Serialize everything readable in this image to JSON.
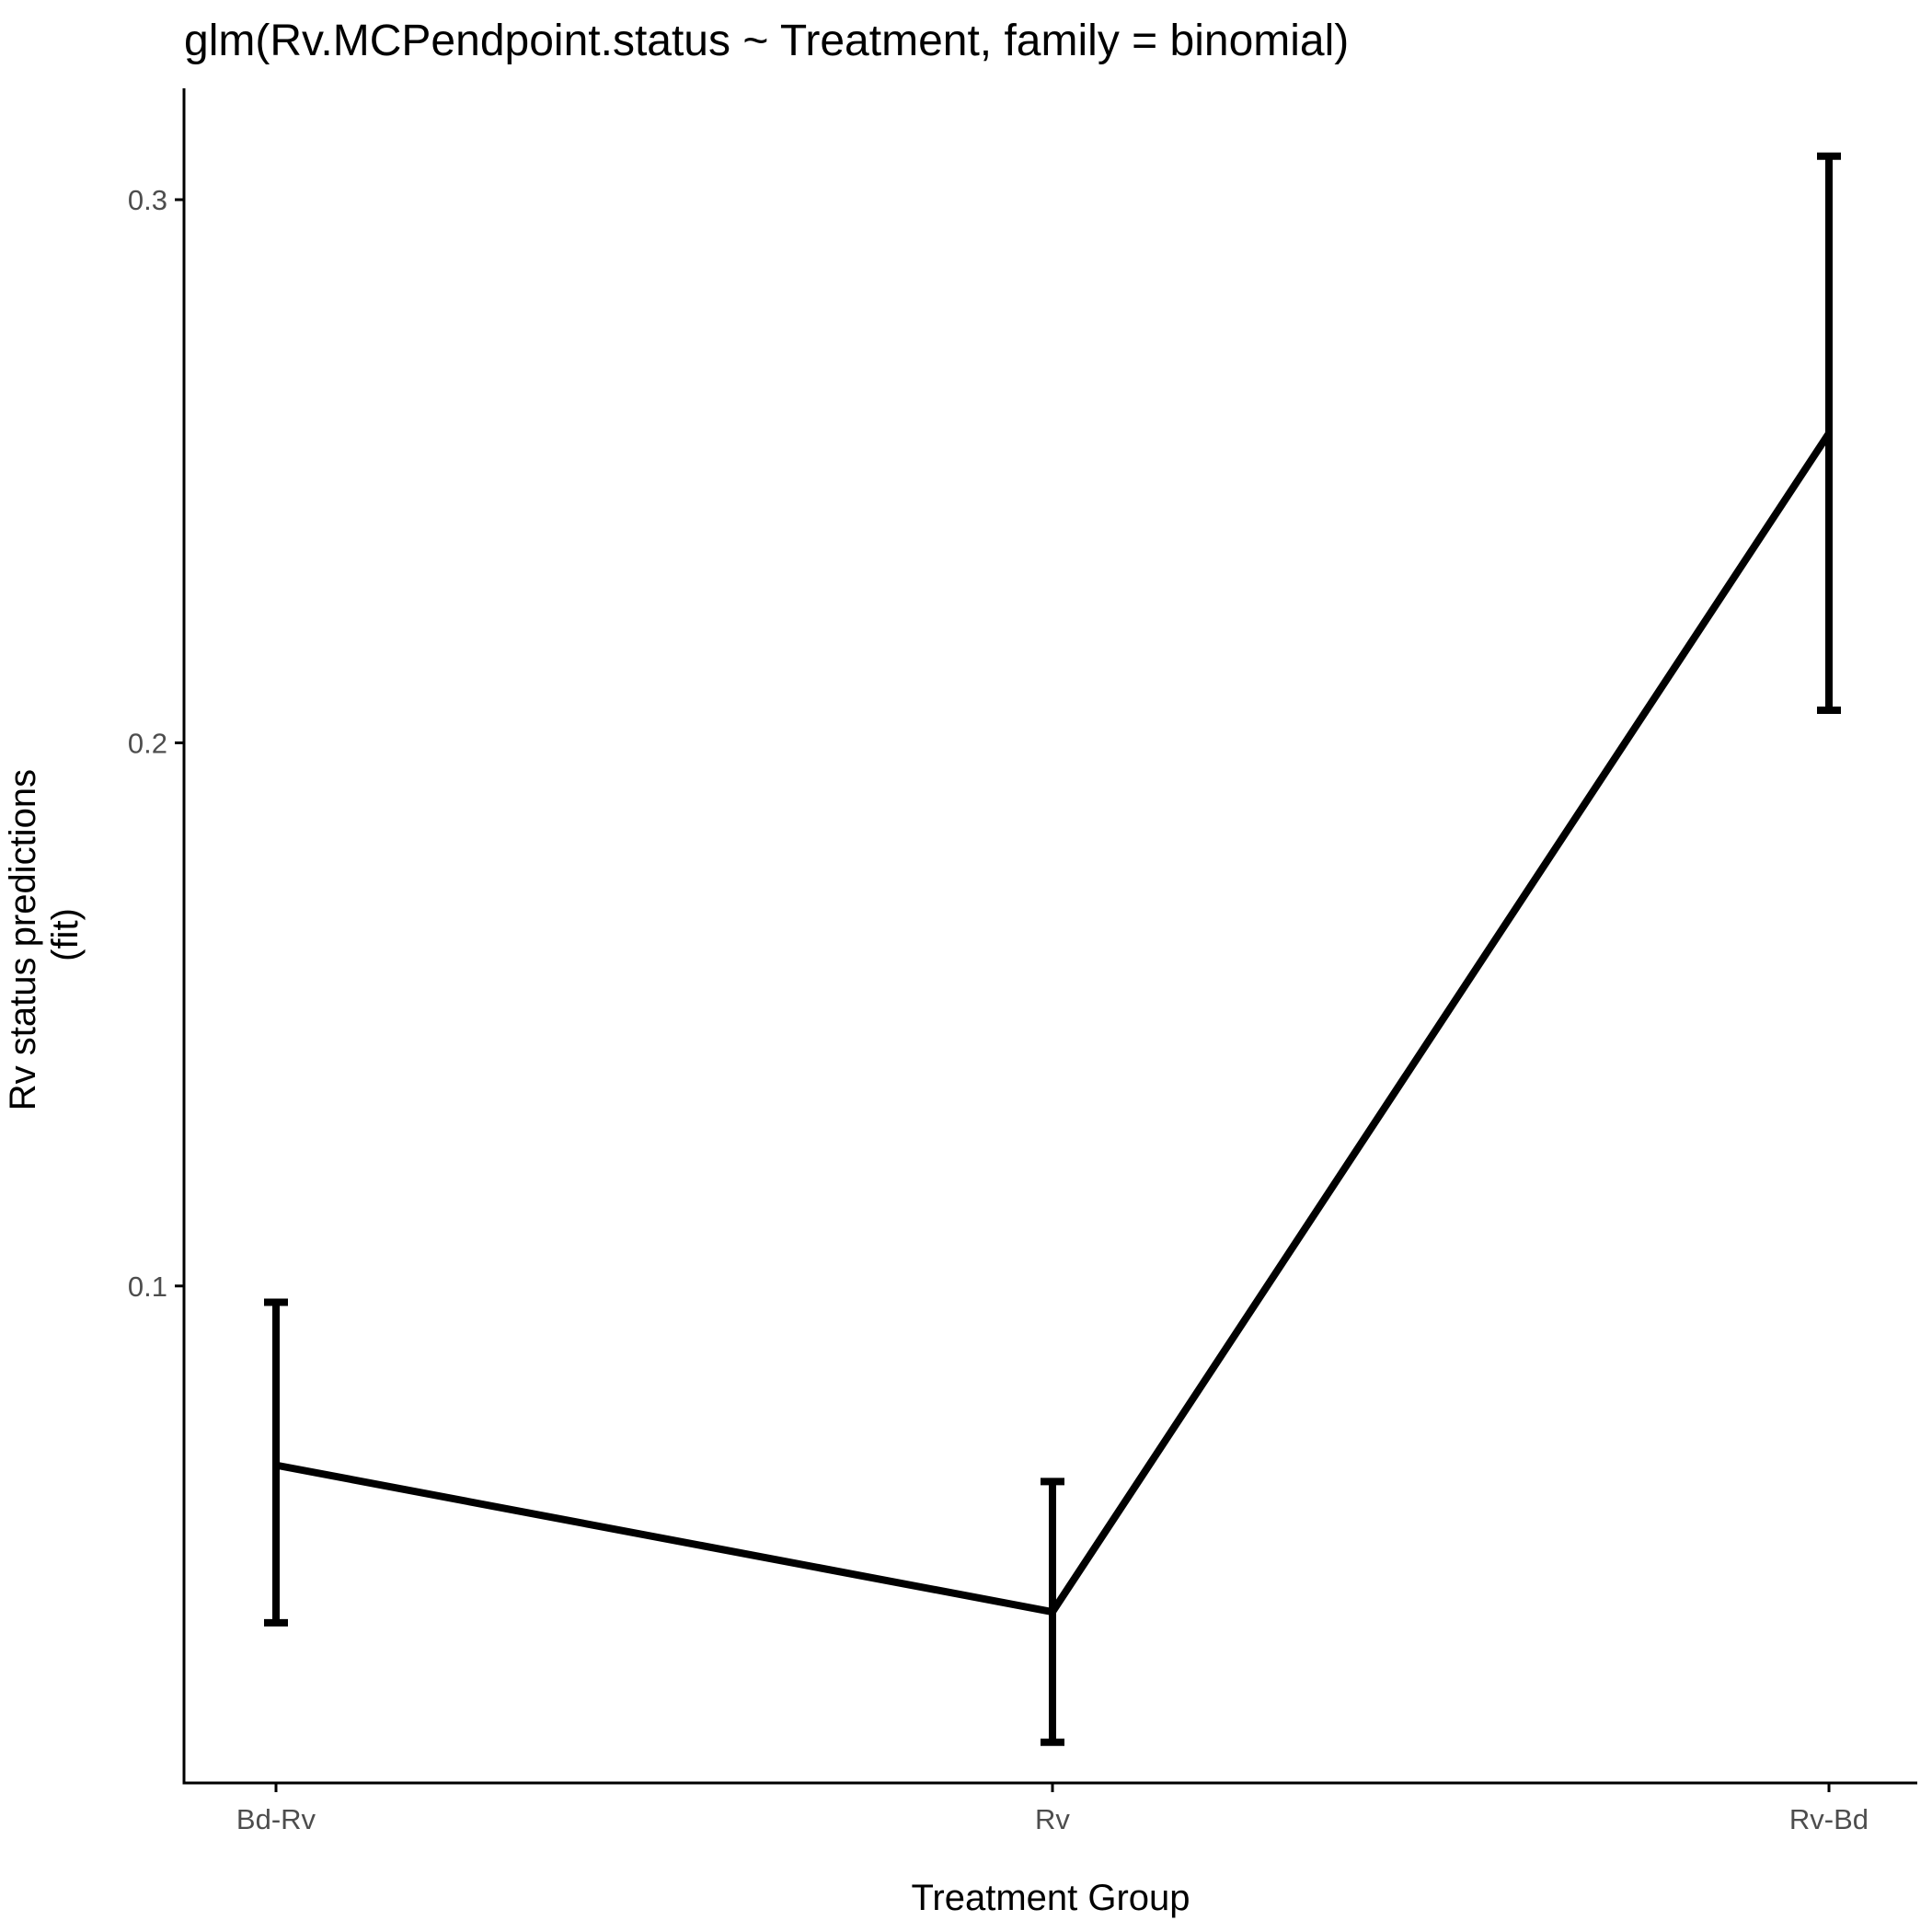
{
  "chart_data": {
    "type": "line",
    "title": "glm(Rv.MCPendpoint.status ~ Treatment, family = binomial)",
    "xlabel": "Treatment Group",
    "ylabel_lines": [
      "Rv status predictions",
      "(fit)"
    ],
    "categories": [
      "Bd-Rv",
      "Rv",
      "Rv-Bd"
    ],
    "series": [
      {
        "values": [
          0.067,
          0.04,
          0.257
        ],
        "lower": [
          0.038,
          0.016,
          0.206
        ],
        "upper": [
          0.097,
          0.064,
          0.308
        ]
      }
    ],
    "ylim": [
      0.0085,
      0.3205
    ],
    "yticks": [
      0.1,
      0.2,
      0.3
    ],
    "ytick_labels": [
      "0.1",
      "0.2",
      "0.3"
    ],
    "grid": false,
    "legend": "none",
    "line_color": "#000000",
    "axis_color": "#000000",
    "tick_label_color": "#4d4d4d"
  }
}
